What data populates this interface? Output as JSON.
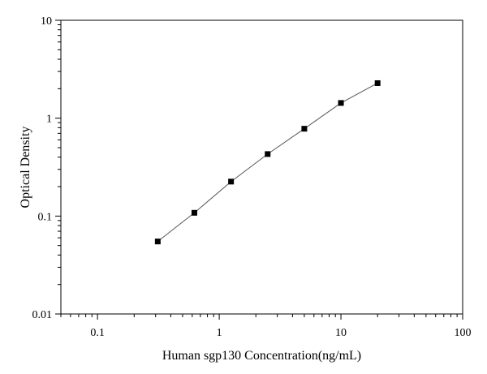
{
  "chart_data": {
    "type": "scatter",
    "title": "",
    "xlabel": "Human sgp130 Concentration(ng/mL)",
    "ylabel": "Optical Density",
    "x_scale": "log",
    "y_scale": "log",
    "xlim": [
      0.05,
      100
    ],
    "ylim": [
      0.01,
      10
    ],
    "x_ticks": [
      {
        "value": 0.1,
        "label": "0.1"
      },
      {
        "value": 1,
        "label": "1"
      },
      {
        "value": 10,
        "label": "10"
      },
      {
        "value": 100,
        "label": "100"
      }
    ],
    "y_ticks": [
      {
        "value": 0.01,
        "label": "0.01"
      },
      {
        "value": 0.1,
        "label": "0.1"
      },
      {
        "value": 1,
        "label": "1"
      },
      {
        "value": 10,
        "label": "10"
      }
    ],
    "grid": false,
    "legend": "none",
    "series": [
      {
        "x": [
          0.3125,
          0.625,
          1.25,
          2.5,
          5,
          10,
          20
        ],
        "y": [
          0.055,
          0.108,
          0.225,
          0.43,
          0.78,
          1.43,
          2.28
        ],
        "marker": "square",
        "fit_line": true
      }
    ],
    "colors": {
      "marker": "#000000",
      "line": "#555555",
      "axis": "#000000"
    }
  }
}
